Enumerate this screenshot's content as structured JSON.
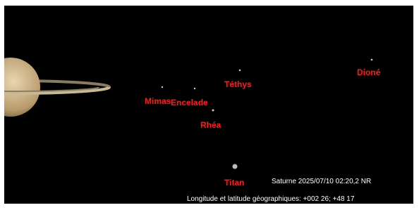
{
  "moons": [
    {
      "label": "Mimas"
    },
    {
      "label": "Encelade"
    },
    {
      "label": "Téthys"
    },
    {
      "label": "Dioné"
    },
    {
      "label": "Rhéa"
    },
    {
      "label": "Titan"
    }
  ],
  "status": {
    "line1": "Saturne 2025/07/10 02:20,2 NR",
    "line2": "Longitude et latitude géographiques: +002 26; +48 17"
  }
}
